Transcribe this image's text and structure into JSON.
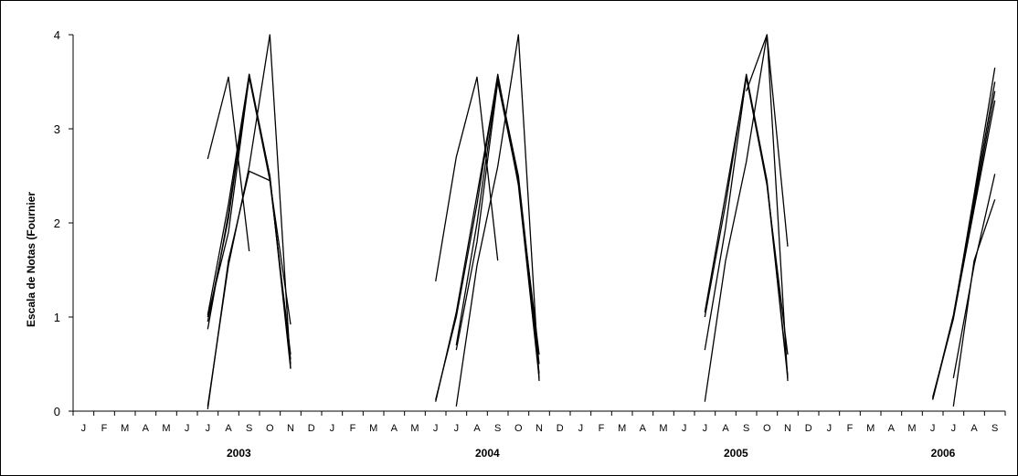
{
  "chart_data": {
    "type": "line",
    "title": "",
    "ylabel": "Escala de Notas (Fournier",
    "xlabel": "",
    "ylim": [
      0,
      4
    ],
    "yticks": [
      "0",
      "1",
      "2",
      "3",
      "4"
    ],
    "grid": false,
    "legend": "none",
    "categories": [
      "J",
      "F",
      "M",
      "A",
      "M",
      "J",
      "J",
      "A",
      "S",
      "O",
      "N",
      "D",
      "J",
      "F",
      "M",
      "A",
      "M",
      "J",
      "J",
      "A",
      "S",
      "O",
      "N",
      "D",
      "J",
      "F",
      "M",
      "A",
      "M",
      "J",
      "J",
      "A",
      "S",
      "O",
      "N",
      "D",
      "J",
      "F",
      "M",
      "A",
      "M",
      "J",
      "J",
      "A",
      "S"
    ],
    "years": [
      {
        "label": "2003",
        "center_index": 7.5
      },
      {
        "label": "2004",
        "center_index": 19.5
      },
      {
        "label": "2005",
        "center_index": 31.5
      },
      {
        "label": "2006",
        "center_index": 41.5
      }
    ],
    "line_color": "#000000",
    "series": [
      {
        "values": [
          [
            6,
            2.68
          ],
          [
            7,
            3.55
          ],
          [
            8,
            1.7
          ]
        ]
      },
      {
        "values": [
          [
            6,
            1.0
          ],
          [
            7,
            1.9
          ],
          [
            8,
            3.55
          ],
          [
            9,
            2.5
          ],
          [
            10,
            0.45
          ]
        ]
      },
      {
        "values": [
          [
            6,
            0.95
          ],
          [
            7,
            2.05
          ],
          [
            8,
            3.58
          ],
          [
            9,
            2.5
          ],
          [
            10,
            0.5
          ]
        ]
      },
      {
        "values": [
          [
            6,
            0.87
          ],
          [
            7,
            2.1
          ],
          [
            8,
            3.55
          ],
          [
            9,
            2.45
          ],
          [
            10,
            0.6
          ]
        ]
      },
      {
        "values": [
          [
            6,
            1.02
          ],
          [
            7,
            2.2
          ],
          [
            8,
            3.58
          ],
          [
            9,
            2.48
          ],
          [
            10,
            0.55
          ]
        ]
      },
      {
        "values": [
          [
            6,
            0.05
          ],
          [
            7,
            1.55
          ],
          [
            8,
            2.6
          ],
          [
            9,
            4.0
          ],
          [
            10,
            0.45
          ]
        ]
      },
      {
        "values": [
          [
            6,
            0.02
          ],
          [
            7,
            1.6
          ],
          [
            8,
            2.55
          ],
          [
            9,
            2.45
          ],
          [
            10,
            0.92
          ]
        ]
      },
      {
        "values": [
          [
            17,
            1.38
          ],
          [
            18,
            2.7
          ],
          [
            19,
            3.55
          ],
          [
            20,
            1.6
          ]
        ]
      },
      {
        "values": [
          [
            17,
            0.1
          ],
          [
            18,
            1.05
          ],
          [
            19,
            2.3
          ],
          [
            20,
            3.55
          ],
          [
            21,
            2.45
          ],
          [
            22,
            0.4
          ]
        ]
      },
      {
        "values": [
          [
            17,
            0.12
          ],
          [
            18,
            1.0
          ],
          [
            19,
            2.2
          ],
          [
            20,
            3.58
          ],
          [
            21,
            2.4
          ],
          [
            22,
            0.35
          ]
        ]
      },
      {
        "values": [
          [
            18,
            0.7
          ],
          [
            19,
            2.0
          ],
          [
            20,
            3.55
          ],
          [
            21,
            2.5
          ],
          [
            22,
            0.5
          ]
        ]
      },
      {
        "values": [
          [
            18,
            0.05
          ],
          [
            19,
            1.55
          ],
          [
            20,
            2.6
          ],
          [
            21,
            4.0
          ],
          [
            22,
            0.32
          ]
        ]
      },
      {
        "values": [
          [
            18,
            0.65
          ],
          [
            19,
            1.8
          ],
          [
            20,
            3.5
          ],
          [
            21,
            2.42
          ],
          [
            22,
            0.6
          ]
        ]
      },
      {
        "values": [
          [
            30,
            0.65
          ],
          [
            31,
            1.95
          ],
          [
            32,
            3.55
          ],
          [
            33,
            2.42
          ],
          [
            34,
            0.35
          ]
        ]
      },
      {
        "values": [
          [
            30,
            1.0
          ],
          [
            31,
            2.2
          ],
          [
            32,
            3.58
          ],
          [
            33,
            2.45
          ],
          [
            34,
            0.38
          ]
        ]
      },
      {
        "values": [
          [
            30,
            0.1
          ],
          [
            31,
            1.6
          ],
          [
            32,
            2.65
          ],
          [
            33,
            4.0
          ],
          [
            34,
            0.32
          ]
        ]
      },
      {
        "values": [
          [
            30,
            1.05
          ],
          [
            31,
            2.3
          ],
          [
            32,
            3.55
          ],
          [
            33,
            2.4
          ],
          [
            34,
            0.6
          ]
        ]
      },
      {
        "values": [
          [
            32,
            3.4
          ],
          [
            33,
            4.0
          ],
          [
            34,
            1.75
          ]
        ]
      },
      {
        "values": [
          [
            41,
            0.12
          ],
          [
            42,
            1.0
          ],
          [
            43,
            2.3
          ],
          [
            44,
            3.65
          ]
        ]
      },
      {
        "values": [
          [
            41,
            0.15
          ],
          [
            42,
            0.98
          ],
          [
            43,
            2.2
          ],
          [
            44,
            3.4
          ]
        ]
      },
      {
        "values": [
          [
            41,
            0.13
          ],
          [
            42,
            1.02
          ],
          [
            43,
            2.25
          ],
          [
            44,
            3.5
          ]
        ]
      },
      {
        "values": [
          [
            42,
            0.35
          ],
          [
            43,
            1.55
          ],
          [
            44,
            2.52
          ]
        ]
      },
      {
        "values": [
          [
            42,
            0.05
          ],
          [
            43,
            1.6
          ],
          [
            44,
            2.25
          ]
        ]
      },
      {
        "values": [
          [
            41,
            0.14
          ],
          [
            42,
            0.99
          ],
          [
            43,
            2.15
          ],
          [
            44,
            3.3
          ]
        ]
      }
    ]
  }
}
